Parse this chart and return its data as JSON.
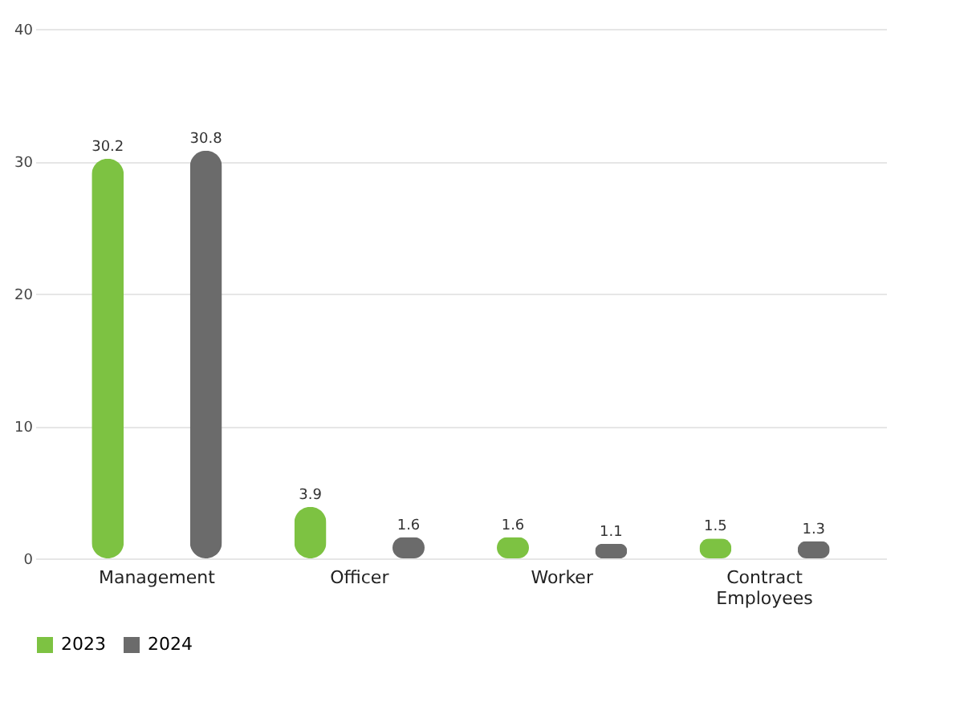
{
  "chart_data": {
    "type": "bar",
    "categories": [
      "Management",
      "Officer",
      "Worker",
      "Contract Employees"
    ],
    "series": [
      {
        "name": "2023",
        "color": "#7dc242",
        "values": [
          30.2,
          3.9,
          1.6,
          1.5
        ]
      },
      {
        "name": "2024",
        "color": "#6b6b6b",
        "values": [
          30.8,
          1.6,
          1.1,
          1.3
        ]
      }
    ],
    "ylim": [
      0,
      40
    ],
    "yticks": [
      0,
      10,
      20,
      30,
      40
    ],
    "grid": "y",
    "legend": "bottom",
    "data_labels": true
  }
}
